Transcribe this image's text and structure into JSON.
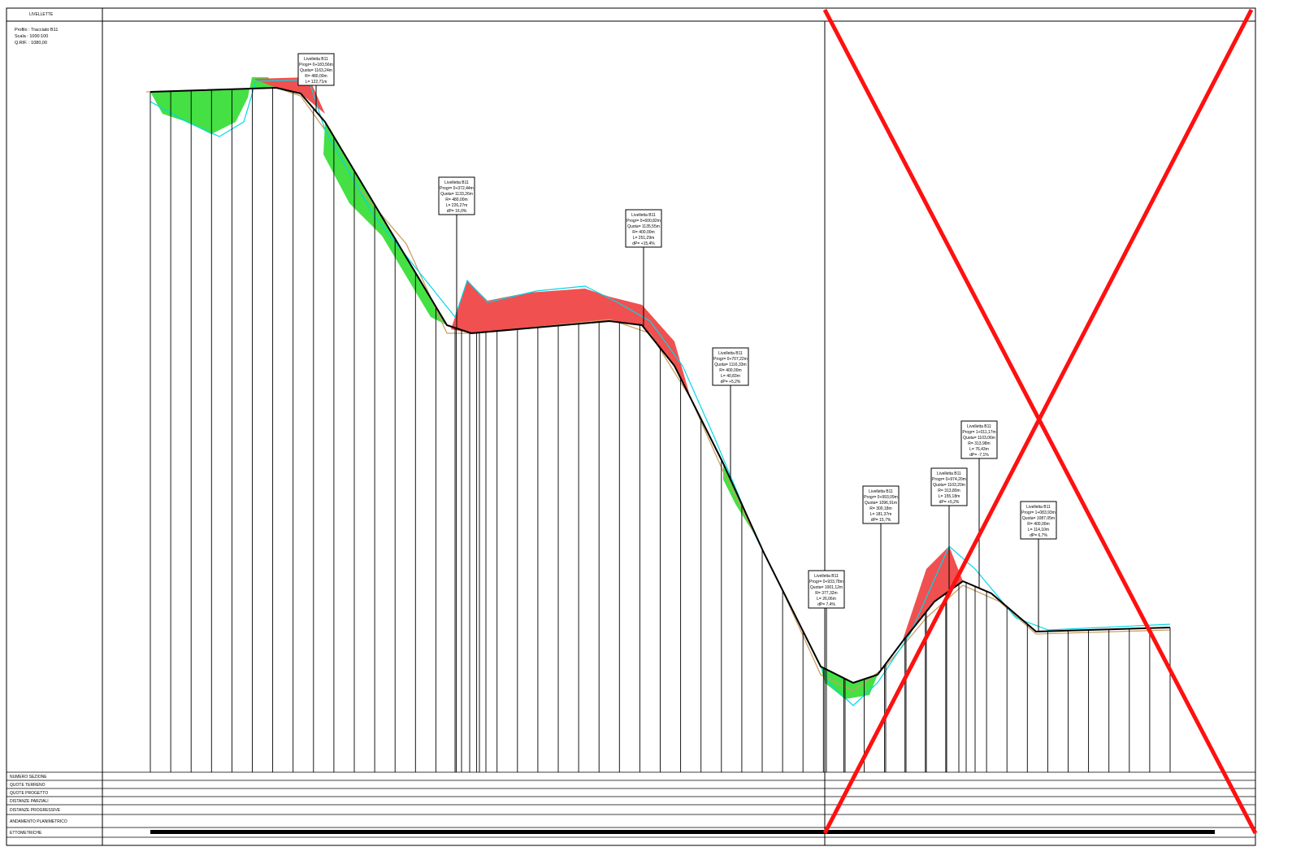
{
  "header": {
    "band_label": "LIVELLETTE",
    "profile": "Profilo : Tracciato B11",
    "scale": "Scala : 1000:100",
    "reference": "Q.RIF. : 1080,00"
  },
  "vertices": [
    {
      "lines": [
        "Livelletta B11",
        "Progr= 0+183,56m",
        "Quota= 1163,24m",
        "R= 480,00m",
        "L= 122,71m"
      ]
    },
    {
      "lines": [
        "Livelletta B11",
        "Progr= 0+372,44m",
        "Quota= 1133,26m",
        "R= 480,00m",
        "L= 226,27m",
        "dP= 16,0%"
      ]
    },
    {
      "lines": [
        "Livelletta B11",
        "Progr= 0+600,82m",
        "Quota= 1135,55m",
        "R= 400,00m",
        "L= 251,29m",
        "dP= +15,4%"
      ]
    },
    {
      "lines": [
        "Livelletta B11",
        "Progr= 0+707,22m",
        "Quota= 1116,33m",
        "R= 400,00m",
        "L= 40,83m",
        "dP= +5,2%"
      ]
    },
    {
      "lines": [
        "Livelletta B11",
        "Progr= 0+933,78m",
        "Quota= 1001,12m",
        "R= 377,32m",
        "L= 26,06m",
        "dP= 7,4%"
      ]
    },
    {
      "lines": [
        "Livelletta B11",
        "Progr= 0+993,09m",
        "Quota= 1096,91m",
        "R= 300,18m",
        "L= 181,37m",
        "dP= 15,7%"
      ]
    },
    {
      "lines": [
        "Livelletta B11",
        "Progr= 0+974,20m",
        "Quota= 1103,20m",
        "R= 313,80m",
        "L= 155,18m",
        "dP= +5,2%"
      ]
    },
    {
      "lines": [
        "Livelletta B11",
        "Progr= 1+011,17m",
        "Quota= 1103,06m",
        "R= 313,98m",
        "L= 76,43m",
        "dP= -7,1%"
      ]
    },
    {
      "lines": [
        "Livelletta B11",
        "Progr= 1+083,93m",
        "Quota= 1087,05m",
        "R= 400,00m",
        "L= 114,10m",
        "dP= 6,7%"
      ]
    }
  ],
  "table": {
    "rows": [
      "NUMERO SEZIONE",
      "QUOTE TERRENO",
      "QUOTE PROGETTO",
      "DISTANZE PARZIALI",
      "DISTANZE PROGRESSIVE",
      "ANDAMENTO PLANIMETRICO",
      "ETTOMETRICHE"
    ]
  }
}
